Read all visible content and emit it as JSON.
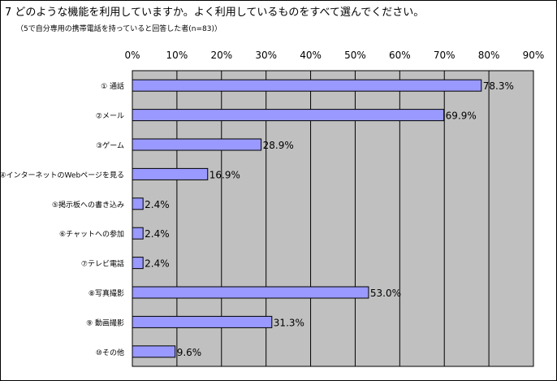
{
  "question": {
    "title": "7  どのような機能を利用していますか。よく利用しているものをすべて選んでください。",
    "subtitle": "（5で自分専用の携帯電話を持っていると回答した者(n=83)）"
  },
  "chart_data": {
    "type": "bar",
    "orientation": "horizontal",
    "title": "",
    "xlabel": "",
    "ylabel": "",
    "xlim": [
      0,
      90
    ],
    "x_ticks": [
      "0%",
      "10%",
      "20%",
      "30%",
      "40%",
      "50%",
      "60%",
      "70%",
      "80%",
      "90%"
    ],
    "grid": true,
    "categories": [
      "① 通話",
      "②メール",
      "③ゲーム",
      "④インターネットのWebページを見る",
      "⑤掲示板への書き込み",
      "⑥チャットへの参加",
      "⑦テレビ電話",
      "⑧写真撮影",
      "⑨ 動画撮影",
      "⑩その他"
    ],
    "values": [
      78.3,
      69.9,
      28.9,
      16.9,
      2.4,
      2.4,
      2.4,
      53.0,
      31.3,
      9.6
    ],
    "value_labels": [
      "78.3%",
      "69.9%",
      "28.9%",
      "16.9%",
      "2.4%",
      "2.4%",
      "2.4%",
      "53.0%",
      "31.3%",
      "9.6%"
    ],
    "colors": {
      "bar": "#9999ff",
      "plot_bg": "#c0c0c0",
      "grid": "#000000"
    }
  }
}
